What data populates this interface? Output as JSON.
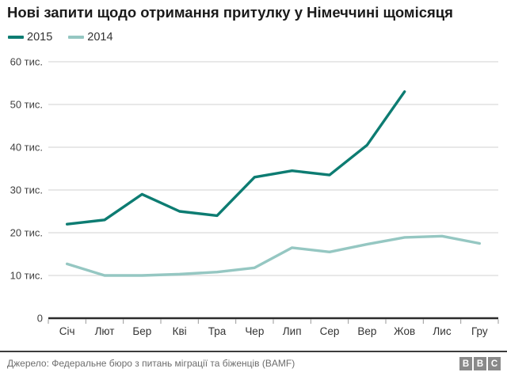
{
  "title": "Нові запити щодо отримання притулку у Німеччині щомісяця",
  "footer": {
    "source": "Джерело: Федеральне бюро з питань міграції та біженців (BAMF)",
    "logo_letters": [
      "B",
      "B",
      "C"
    ]
  },
  "colors": {
    "series_2015": "#0d7c72",
    "series_2014": "#95c7c2",
    "grid": "#e0e0e0",
    "axis": "#2b2b2b",
    "tick": "#999999",
    "axis_label": "#404040",
    "month_label": "#333333"
  },
  "chart_data": {
    "type": "line",
    "title": "Нові запити щодо отримання притулку у Німеччині щомісяця",
    "xlabel": "",
    "ylabel": "",
    "unit": "тис.",
    "ylim": [
      0,
      60
    ],
    "grid": true,
    "legend_position": "top-left",
    "categories": [
      "Січ",
      "Лют",
      "Бер",
      "Кві",
      "Тра",
      "Чер",
      "Лип",
      "Сер",
      "Вер",
      "Жов",
      "Лис",
      "Гру"
    ],
    "y_ticks": [
      {
        "value": 0,
        "label": "0"
      },
      {
        "value": 10,
        "label": "10 тис."
      },
      {
        "value": 20,
        "label": "20 тис."
      },
      {
        "value": 30,
        "label": "30 тис."
      },
      {
        "value": 40,
        "label": "40 тис."
      },
      {
        "value": 50,
        "label": "50 тис."
      },
      {
        "value": 60,
        "label": "60 тис."
      }
    ],
    "series": [
      {
        "name": "2015",
        "color": "#0d7c72",
        "values": [
          22,
          23,
          29,
          25,
          24,
          33,
          34.5,
          33.5,
          40.5,
          53
        ]
      },
      {
        "name": "2014",
        "color": "#95c7c2",
        "values": [
          12.7,
          10,
          10,
          10.3,
          10.8,
          11.8,
          16.5,
          15.5,
          17.3,
          18.9,
          19.2,
          17.5
        ]
      }
    ]
  }
}
